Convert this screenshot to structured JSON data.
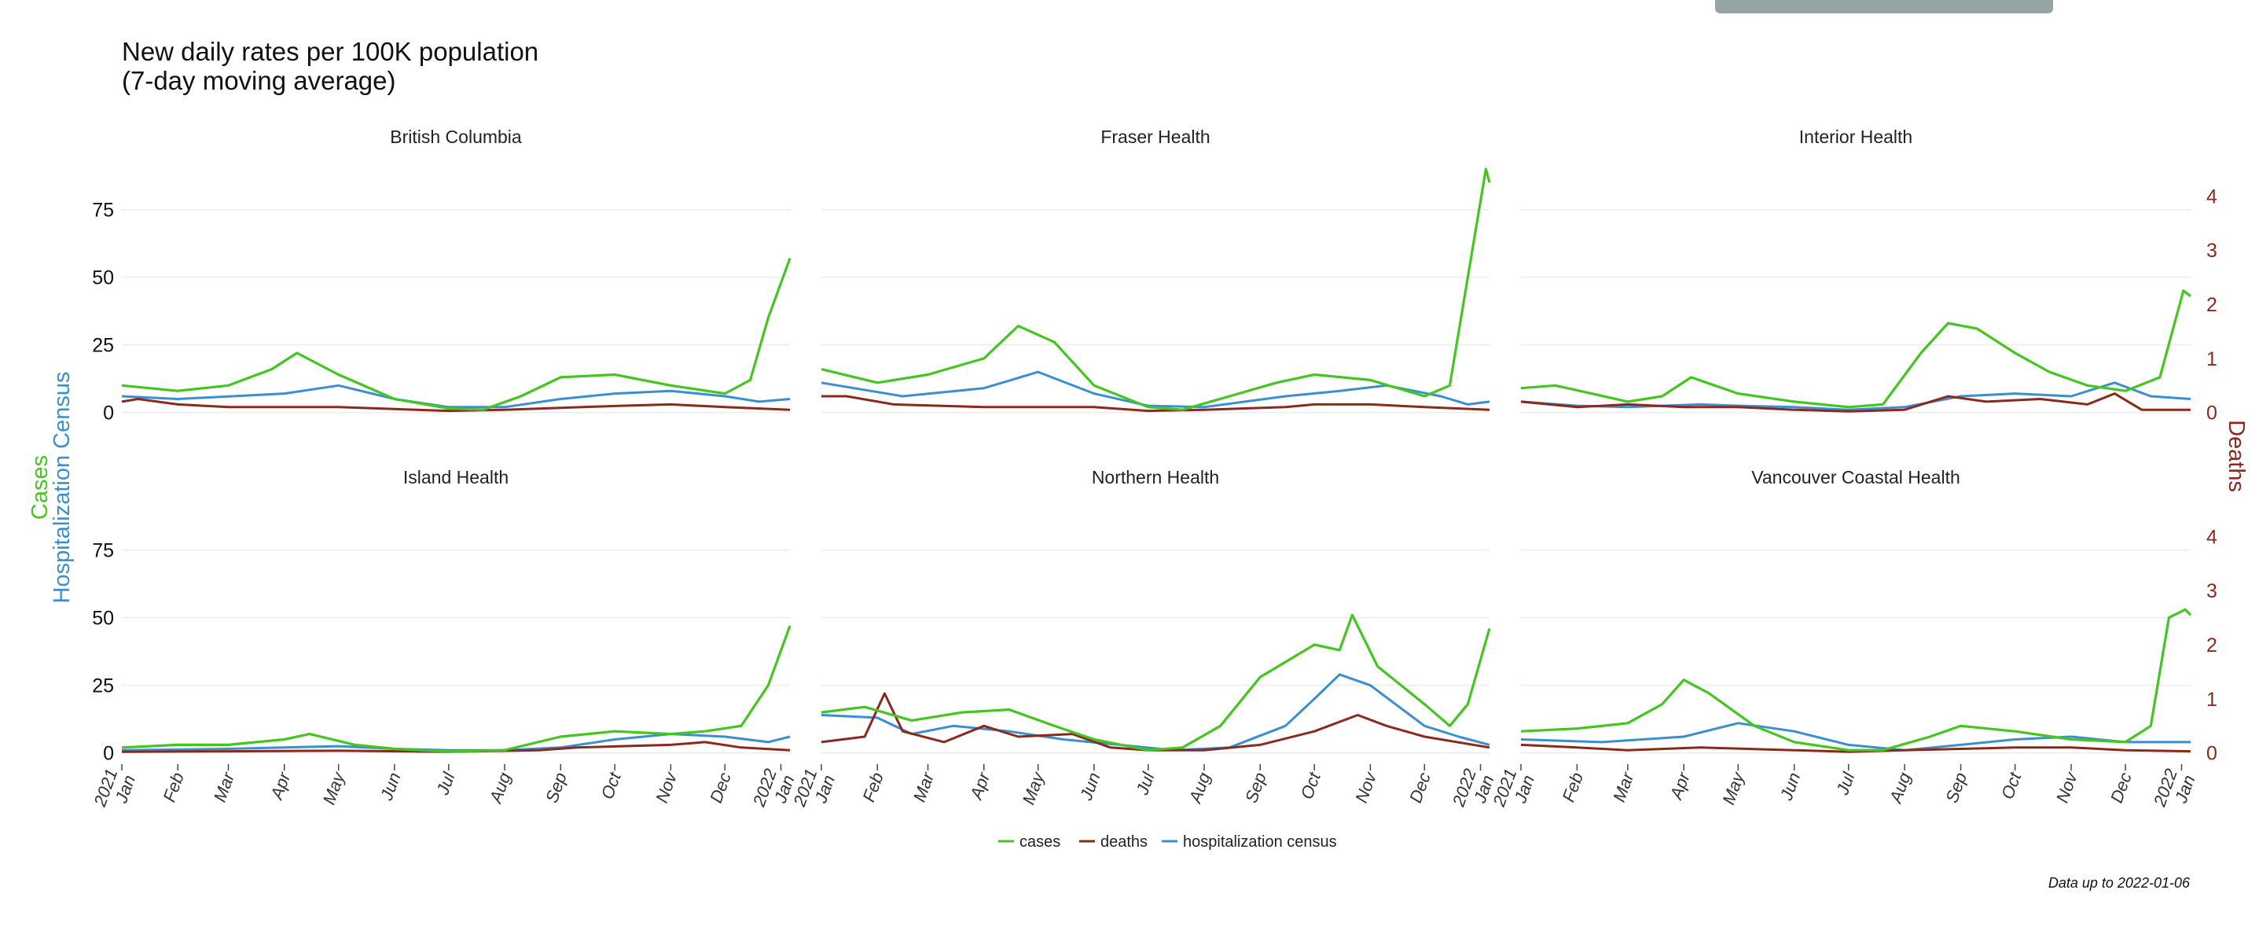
{
  "page": {
    "title_line1": "New daily rates per 100K population",
    "title_line2": "(7-day moving average)",
    "footnote": "Data up to 2022-01-06"
  },
  "chart_data": {
    "type": "line",
    "title": "New daily rates per 100K population (7-day moving average)",
    "left_axis_labels": [
      "Cases",
      "Hospitalization Census"
    ],
    "right_axis_label": "Deaths",
    "y_left_range": [
      -3,
      90
    ],
    "y_left_ticks": [
      0,
      25,
      50,
      75
    ],
    "y_right_range": [
      -0.15,
      4.5
    ],
    "y_right_ticks": [
      0,
      1,
      2,
      3,
      4
    ],
    "x_range": [
      "2021-01-01",
      "2022-01-06"
    ],
    "x_ticks": [
      "2021 Jan",
      "Feb",
      "Mar",
      "Apr",
      "May",
      "Jun",
      "Jul",
      "Aug",
      "Sep",
      "Oct",
      "Nov",
      "Dec",
      "2022 Jan"
    ],
    "grid": true,
    "legend_position": "bottom",
    "colors": {
      "cases": "#44c51f",
      "deaths": "#8b2a1c",
      "hosp": "#3a8fd0"
    },
    "legend": [
      {
        "name": "cases",
        "color": "#44c51f"
      },
      {
        "name": "deaths",
        "color": "#8b2a1c"
      },
      {
        "name": "hospitalization census",
        "color": "#3a8fd0"
      }
    ],
    "panels": [
      {
        "name": "British Columbia",
        "cases": [
          [
            "2021-01-01",
            10
          ],
          [
            "2021-02-01",
            8
          ],
          [
            "2021-03-01",
            10
          ],
          [
            "2021-03-25",
            16
          ],
          [
            "2021-04-08",
            22
          ],
          [
            "2021-05-01",
            14
          ],
          [
            "2021-06-01",
            5
          ],
          [
            "2021-07-01",
            1.5
          ],
          [
            "2021-07-20",
            1
          ],
          [
            "2021-08-10",
            6
          ],
          [
            "2021-09-01",
            13
          ],
          [
            "2021-10-01",
            14
          ],
          [
            "2021-11-01",
            10
          ],
          [
            "2021-12-01",
            7
          ],
          [
            "2021-12-15",
            12
          ],
          [
            "2021-12-25",
            35
          ],
          [
            "2022-01-06",
            57
          ]
        ],
        "deaths": [
          [
            "2021-01-01",
            0.2
          ],
          [
            "2021-01-10",
            0.25
          ],
          [
            "2021-02-01",
            0.15
          ],
          [
            "2021-03-01",
            0.1
          ],
          [
            "2021-05-01",
            0.1
          ],
          [
            "2021-07-01",
            0.03
          ],
          [
            "2021-08-01",
            0.05
          ],
          [
            "2021-10-01",
            0.12
          ],
          [
            "2021-11-01",
            0.15
          ],
          [
            "2021-12-01",
            0.1
          ],
          [
            "2022-01-06",
            0.05
          ]
        ],
        "hosp": [
          [
            "2021-01-01",
            6
          ],
          [
            "2021-02-01",
            5
          ],
          [
            "2021-04-01",
            7
          ],
          [
            "2021-05-01",
            10
          ],
          [
            "2021-06-01",
            5
          ],
          [
            "2021-07-01",
            2
          ],
          [
            "2021-08-01",
            2
          ],
          [
            "2021-09-01",
            5
          ],
          [
            "2021-10-01",
            7
          ],
          [
            "2021-11-01",
            8
          ],
          [
            "2021-12-01",
            6
          ],
          [
            "2021-12-20",
            4
          ],
          [
            "2022-01-06",
            5
          ]
        ]
      },
      {
        "name": "Fraser Health",
        "cases": [
          [
            "2021-01-01",
            16
          ],
          [
            "2021-02-01",
            11
          ],
          [
            "2021-03-01",
            14
          ],
          [
            "2021-04-01",
            20
          ],
          [
            "2021-04-20",
            32
          ],
          [
            "2021-05-10",
            26
          ],
          [
            "2021-06-01",
            10
          ],
          [
            "2021-07-01",
            2
          ],
          [
            "2021-07-20",
            1
          ],
          [
            "2021-08-15",
            6
          ],
          [
            "2021-09-10",
            11
          ],
          [
            "2021-10-01",
            14
          ],
          [
            "2021-11-01",
            12
          ],
          [
            "2021-12-01",
            6
          ],
          [
            "2021-12-15",
            10
          ],
          [
            "2021-12-25",
            50
          ],
          [
            "2022-01-04",
            90
          ],
          [
            "2022-01-06",
            85
          ]
        ],
        "deaths": [
          [
            "2021-01-01",
            0.3
          ],
          [
            "2021-01-15",
            0.3
          ],
          [
            "2021-02-10",
            0.15
          ],
          [
            "2021-04-01",
            0.1
          ],
          [
            "2021-06-01",
            0.1
          ],
          [
            "2021-07-01",
            0.03
          ],
          [
            "2021-08-01",
            0.05
          ],
          [
            "2021-09-15",
            0.1
          ],
          [
            "2021-10-01",
            0.15
          ],
          [
            "2021-11-01",
            0.15
          ],
          [
            "2021-12-01",
            0.1
          ],
          [
            "2022-01-06",
            0.05
          ]
        ],
        "hosp": [
          [
            "2021-01-01",
            11
          ],
          [
            "2021-02-15",
            6
          ],
          [
            "2021-04-01",
            9
          ],
          [
            "2021-05-01",
            15
          ],
          [
            "2021-06-01",
            7
          ],
          [
            "2021-07-01",
            2.5
          ],
          [
            "2021-08-01",
            2
          ],
          [
            "2021-09-15",
            6
          ],
          [
            "2021-10-15",
            8
          ],
          [
            "2021-11-10",
            10
          ],
          [
            "2021-12-10",
            6
          ],
          [
            "2021-12-25",
            3
          ],
          [
            "2022-01-06",
            4
          ]
        ]
      },
      {
        "name": "Interior Health",
        "cases": [
          [
            "2021-01-01",
            9
          ],
          [
            "2021-01-20",
            10
          ],
          [
            "2021-03-01",
            4
          ],
          [
            "2021-03-20",
            6
          ],
          [
            "2021-04-05",
            13
          ],
          [
            "2021-05-01",
            7
          ],
          [
            "2021-06-01",
            4
          ],
          [
            "2021-07-01",
            2
          ],
          [
            "2021-07-20",
            3
          ],
          [
            "2021-08-10",
            22
          ],
          [
            "2021-08-25",
            33
          ],
          [
            "2021-09-10",
            31
          ],
          [
            "2021-10-01",
            22
          ],
          [
            "2021-10-20",
            15
          ],
          [
            "2021-11-10",
            10
          ],
          [
            "2021-12-01",
            8
          ],
          [
            "2021-12-20",
            13
          ],
          [
            "2022-01-02",
            45
          ],
          [
            "2022-01-06",
            43
          ]
        ],
        "deaths": [
          [
            "2021-01-01",
            0.2
          ],
          [
            "2021-02-01",
            0.1
          ],
          [
            "2021-03-01",
            0.15
          ],
          [
            "2021-04-01",
            0.1
          ],
          [
            "2021-05-01",
            0.1
          ],
          [
            "2021-06-01",
            0.05
          ],
          [
            "2021-07-01",
            0.02
          ],
          [
            "2021-08-01",
            0.05
          ],
          [
            "2021-08-25",
            0.3
          ],
          [
            "2021-09-15",
            0.2
          ],
          [
            "2021-10-15",
            0.25
          ],
          [
            "2021-11-10",
            0.15
          ],
          [
            "2021-11-25",
            0.35
          ],
          [
            "2021-12-10",
            0.05
          ],
          [
            "2022-01-06",
            0.05
          ]
        ],
        "hosp": [
          [
            "2021-01-01",
            4
          ],
          [
            "2021-02-01",
            2.5
          ],
          [
            "2021-03-01",
            2
          ],
          [
            "2021-04-10",
            3
          ],
          [
            "2021-05-01",
            2.5
          ],
          [
            "2021-06-01",
            2
          ],
          [
            "2021-07-01",
            1
          ],
          [
            "2021-08-01",
            2
          ],
          [
            "2021-09-01",
            6
          ],
          [
            "2021-10-01",
            7
          ],
          [
            "2021-11-01",
            6
          ],
          [
            "2021-11-25",
            11
          ],
          [
            "2021-12-15",
            6
          ],
          [
            "2022-01-06",
            5
          ]
        ]
      },
      {
        "name": "Island Health",
        "cases": [
          [
            "2021-01-01",
            2
          ],
          [
            "2021-02-01",
            3
          ],
          [
            "2021-03-01",
            3
          ],
          [
            "2021-04-01",
            5
          ],
          [
            "2021-04-15",
            7
          ],
          [
            "2021-05-10",
            3
          ],
          [
            "2021-06-01",
            1.5
          ],
          [
            "2021-07-01",
            0.5
          ],
          [
            "2021-08-01",
            1
          ],
          [
            "2021-09-01",
            6
          ],
          [
            "2021-10-01",
            8
          ],
          [
            "2021-11-01",
            7
          ],
          [
            "2021-11-20",
            8
          ],
          [
            "2021-12-10",
            10
          ],
          [
            "2021-12-25",
            25
          ],
          [
            "2022-01-06",
            47
          ]
        ],
        "deaths": [
          [
            "2021-01-01",
            0.02
          ],
          [
            "2021-03-01",
            0.03
          ],
          [
            "2021-05-01",
            0.04
          ],
          [
            "2021-07-01",
            0.02
          ],
          [
            "2021-08-20",
            0.05
          ],
          [
            "2021-09-10",
            0.1
          ],
          [
            "2021-10-01",
            0.12
          ],
          [
            "2021-11-01",
            0.15
          ],
          [
            "2021-11-20",
            0.2
          ],
          [
            "2021-12-10",
            0.1
          ],
          [
            "2022-01-06",
            0.05
          ]
        ],
        "hosp": [
          [
            "2021-01-01",
            1
          ],
          [
            "2021-03-01",
            1.5
          ],
          [
            "2021-05-01",
            2.5
          ],
          [
            "2021-06-01",
            1.5
          ],
          [
            "2021-07-01",
            1
          ],
          [
            "2021-08-01",
            1
          ],
          [
            "2021-09-01",
            2
          ],
          [
            "2021-10-01",
            5
          ],
          [
            "2021-11-01",
            7
          ],
          [
            "2021-12-01",
            6
          ],
          [
            "2021-12-25",
            4
          ],
          [
            "2022-01-06",
            6
          ]
        ]
      },
      {
        "name": "Northern Health",
        "cases": [
          [
            "2021-01-01",
            15
          ],
          [
            "2021-01-25",
            17
          ],
          [
            "2021-02-20",
            12
          ],
          [
            "2021-03-20",
            15
          ],
          [
            "2021-04-15",
            16
          ],
          [
            "2021-05-10",
            10
          ],
          [
            "2021-06-01",
            5
          ],
          [
            "2021-07-01",
            1
          ],
          [
            "2021-07-20",
            2
          ],
          [
            "2021-08-10",
            10
          ],
          [
            "2021-09-01",
            28
          ],
          [
            "2021-10-01",
            40
          ],
          [
            "2021-10-15",
            38
          ],
          [
            "2021-10-22",
            51
          ],
          [
            "2021-11-05",
            32
          ],
          [
            "2021-12-01",
            18
          ],
          [
            "2021-12-15",
            10
          ],
          [
            "2021-12-25",
            18
          ],
          [
            "2022-01-06",
            46
          ]
        ],
        "deaths": [
          [
            "2021-01-01",
            0.2
          ],
          [
            "2021-01-25",
            0.3
          ],
          [
            "2021-02-05",
            1.1
          ],
          [
            "2021-02-15",
            0.4
          ],
          [
            "2021-03-10",
            0.2
          ],
          [
            "2021-04-01",
            0.5
          ],
          [
            "2021-04-20",
            0.3
          ],
          [
            "2021-05-20",
            0.35
          ],
          [
            "2021-06-10",
            0.1
          ],
          [
            "2021-07-01",
            0.05
          ],
          [
            "2021-08-01",
            0.05
          ],
          [
            "2021-09-01",
            0.15
          ],
          [
            "2021-10-01",
            0.4
          ],
          [
            "2021-10-25",
            0.7
          ],
          [
            "2021-11-10",
            0.5
          ],
          [
            "2021-12-01",
            0.3
          ],
          [
            "2022-01-06",
            0.1
          ]
        ],
        "hosp": [
          [
            "2021-01-01",
            14
          ],
          [
            "2021-02-01",
            13
          ],
          [
            "2021-02-20",
            7
          ],
          [
            "2021-03-15",
            10
          ],
          [
            "2021-04-15",
            8
          ],
          [
            "2021-05-15",
            5
          ],
          [
            "2021-06-15",
            3
          ],
          [
            "2021-07-15",
            1
          ],
          [
            "2021-08-15",
            2
          ],
          [
            "2021-09-15",
            10
          ],
          [
            "2021-10-01",
            20
          ],
          [
            "2021-10-15",
            29
          ],
          [
            "2021-11-01",
            25
          ],
          [
            "2021-12-01",
            10
          ],
          [
            "2021-12-20",
            6
          ],
          [
            "2022-01-06",
            3
          ]
        ]
      },
      {
        "name": "Vancouver Coastal Health",
        "cases": [
          [
            "2021-01-01",
            8
          ],
          [
            "2021-02-01",
            9
          ],
          [
            "2021-03-01",
            11
          ],
          [
            "2021-03-20",
            18
          ],
          [
            "2021-04-01",
            27
          ],
          [
            "2021-04-15",
            22
          ],
          [
            "2021-05-10",
            10
          ],
          [
            "2021-06-01",
            4
          ],
          [
            "2021-07-01",
            1
          ],
          [
            "2021-07-20",
            1
          ],
          [
            "2021-08-15",
            6
          ],
          [
            "2021-09-01",
            10
          ],
          [
            "2021-10-01",
            8
          ],
          [
            "2021-11-01",
            5
          ],
          [
            "2021-12-01",
            4
          ],
          [
            "2021-12-15",
            10
          ],
          [
            "2021-12-25",
            50
          ],
          [
            "2022-01-03",
            53
          ],
          [
            "2022-01-06",
            51
          ]
        ],
        "deaths": [
          [
            "2021-01-01",
            0.15
          ],
          [
            "2021-02-01",
            0.1
          ],
          [
            "2021-03-01",
            0.05
          ],
          [
            "2021-04-10",
            0.1
          ],
          [
            "2021-06-01",
            0.05
          ],
          [
            "2021-07-01",
            0.02
          ],
          [
            "2021-08-01",
            0.05
          ],
          [
            "2021-10-01",
            0.1
          ],
          [
            "2021-11-01",
            0.1
          ],
          [
            "2021-12-01",
            0.05
          ],
          [
            "2022-01-06",
            0.03
          ]
        ],
        "hosp": [
          [
            "2021-01-01",
            5
          ],
          [
            "2021-02-15",
            4
          ],
          [
            "2021-04-01",
            6
          ],
          [
            "2021-05-01",
            11
          ],
          [
            "2021-06-01",
            8
          ],
          [
            "2021-07-01",
            3
          ],
          [
            "2021-08-01",
            1
          ],
          [
            "2021-09-01",
            3
          ],
          [
            "2021-10-01",
            5
          ],
          [
            "2021-11-01",
            6
          ],
          [
            "2021-12-01",
            4
          ],
          [
            "2022-01-06",
            4
          ]
        ]
      }
    ]
  }
}
